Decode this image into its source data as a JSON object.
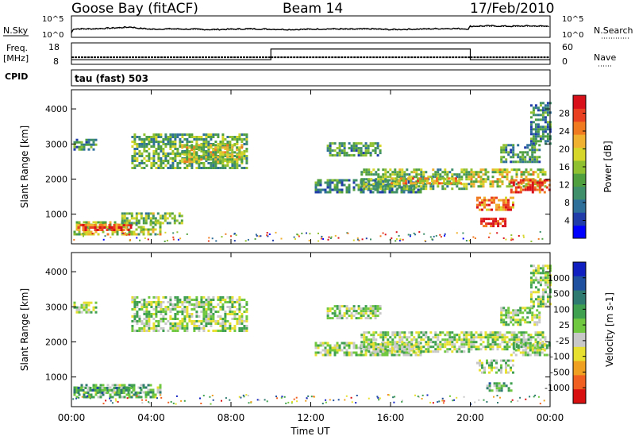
{
  "header": {
    "station": "Goose Bay (fitACF)",
    "beam": "Beam 14",
    "date": "17/Feb/2010"
  },
  "left_labels": {
    "nsky": "N.Sky",
    "freq_line1": "Freq.",
    "freq_line2": "[MHz]",
    "cpid": "CPID"
  },
  "right_labels": {
    "nsearch": "N.Search",
    "nave": "Nave"
  },
  "cpid_text": "tau (fast) 503",
  "time_axis": {
    "title": "Time UT",
    "ticks": [
      "00:00",
      "04:00",
      "08:00",
      "12:00",
      "16:00",
      "20:00",
      "00:00"
    ]
  },
  "colors": {
    "data_points": "#2a2a2a"
  },
  "chart_data": [
    {
      "type": "line",
      "name": "noise",
      "left_axis_label": "N.Sky",
      "right_axis_label": "N.Search",
      "left_ticks": [
        "10^5",
        "10^0"
      ],
      "right_ticks": [
        "10^5",
        "10^0"
      ],
      "x_hours": [
        0,
        0.1,
        1,
        2,
        3,
        3.3,
        4,
        5,
        6,
        7,
        8,
        9,
        10,
        11,
        12,
        13,
        14,
        15,
        16,
        17,
        18,
        19,
        19.9,
        20,
        21,
        22,
        23,
        24
      ],
      "y_log10": [
        0.8,
        1.9,
        1.9,
        2.1,
        2.4,
        2.1,
        1.8,
        1.9,
        1.8,
        1.7,
        1.8,
        1.9,
        1.8,
        1.7,
        1.8,
        1.9,
        1.8,
        1.9,
        1.7,
        1.8,
        1.9,
        2.0,
        1.9,
        2.6,
        2.7,
        2.6,
        2.7,
        2.6
      ],
      "ylim": [
        0,
        5
      ]
    },
    {
      "type": "line",
      "name": "freq_nave",
      "left_axis_label": "Freq. [MHz]",
      "right_axis_label": "Nave",
      "left_ticks": [
        "18",
        "8"
      ],
      "right_ticks": [
        "60",
        "0"
      ],
      "freq_segments": [
        {
          "x_start": 0,
          "x_end": 10,
          "value": 11
        },
        {
          "x_start": 10,
          "x_end": 20,
          "value": 11
        },
        {
          "x_start": 20,
          "x_end": 24,
          "value": 11
        }
      ],
      "nave_segments": [
        {
          "x_start": 0,
          "x_end": 10,
          "value": 10
        },
        {
          "x_start": 10,
          "x_end": 20,
          "value": 45
        },
        {
          "x_start": 20,
          "x_end": 24,
          "value": 10
        }
      ],
      "freq_ylim": [
        8,
        18
      ],
      "nave_ylim": [
        0,
        60
      ]
    },
    {
      "type": "heatmap",
      "name": "power",
      "ylabel": "Slant Range [km]",
      "yticks": [
        "1000",
        "2000",
        "3000",
        "4000"
      ],
      "ylim": [
        200,
        4500
      ],
      "xlim": [
        0,
        24
      ],
      "colorbar": {
        "label": "Power [dB]",
        "ticks": [
          "4",
          "8",
          "12",
          "16",
          "20",
          "24",
          "28"
        ],
        "colors": [
          "#0000ff",
          "#1f3ca8",
          "#2e6f9a",
          "#3f8f6b",
          "#4f9f3f",
          "#8fc030",
          "#d6d62a",
          "#f0b030",
          "#f07a20",
          "#e84020",
          "#d8101a"
        ]
      },
      "regions": [
        {
          "x0": 0.1,
          "x1": 1.2,
          "y0": 2850,
          "y1": 3150,
          "level": 0.35
        },
        {
          "x0": 0.1,
          "x1": 4.5,
          "y0": 450,
          "y1": 800,
          "level": 0.55
        },
        {
          "x0": 0.3,
          "x1": 3.0,
          "y0": 520,
          "y1": 720,
          "level": 0.85
        },
        {
          "x0": 2.5,
          "x1": 5.5,
          "y0": 750,
          "y1": 1050,
          "level": 0.45
        },
        {
          "x0": 3.0,
          "x1": 8.8,
          "y0": 2300,
          "y1": 3300,
          "level": 0.4
        },
        {
          "x0": 5.5,
          "x1": 8.5,
          "y0": 2500,
          "y1": 3000,
          "level": 0.55
        },
        {
          "x0": 12.2,
          "x1": 17.5,
          "y0": 1650,
          "y1": 2000,
          "level": 0.3
        },
        {
          "x0": 12.8,
          "x1": 15.5,
          "y0": 2700,
          "y1": 3050,
          "level": 0.35
        },
        {
          "x0": 14.5,
          "x1": 20,
          "y0": 1700,
          "y1": 2300,
          "level": 0.45
        },
        {
          "x0": 16,
          "x1": 19.5,
          "y0": 1850,
          "y1": 2050,
          "level": 0.65
        },
        {
          "x0": 20,
          "x1": 23.8,
          "y0": 1800,
          "y1": 2300,
          "level": 0.55
        },
        {
          "x0": 20.3,
          "x1": 22.2,
          "y0": 1100,
          "y1": 1500,
          "level": 0.8
        },
        {
          "x0": 20.5,
          "x1": 21.8,
          "y0": 650,
          "y1": 900,
          "level": 0.95
        },
        {
          "x0": 22,
          "x1": 24,
          "y0": 1600,
          "y1": 2000,
          "level": 0.9
        },
        {
          "x0": 21.5,
          "x1": 23.5,
          "y0": 2500,
          "y1": 3000,
          "level": 0.35
        },
        {
          "x0": 23,
          "x1": 24,
          "y0": 3000,
          "y1": 4200,
          "level": 0.3
        }
      ]
    },
    {
      "type": "heatmap",
      "name": "velocity",
      "ylabel": "Slant Range [km]",
      "yticks": [
        "1000",
        "2000",
        "3000",
        "4000"
      ],
      "ylim": [
        200,
        4500
      ],
      "xlim": [
        0,
        24
      ],
      "colorbar": {
        "label": "Velocity [m s-1]",
        "ticks": [
          "1000",
          "500",
          "100",
          "25",
          "-25",
          "-100",
          "-500",
          "-1000"
        ],
        "colors": [
          "#1020c0",
          "#1f50a0",
          "#2f7a70",
          "#3fa050",
          "#70c840",
          "#c8c8c8",
          "#e8e030",
          "#f0a020",
          "#f06020",
          "#d81010"
        ]
      },
      "regions": [
        {
          "x0": 0.1,
          "x1": 1.2,
          "y0": 2850,
          "y1": 3150,
          "level": 0.5
        },
        {
          "x0": 0.1,
          "x1": 4.5,
          "y0": 450,
          "y1": 800,
          "level": 0.42
        },
        {
          "x0": 0.3,
          "x1": 3.5,
          "y0": 520,
          "y1": 720,
          "level": 0.35
        },
        {
          "x0": 3.0,
          "x1": 8.8,
          "y0": 2300,
          "y1": 3300,
          "level": 0.5
        },
        {
          "x0": 12.2,
          "x1": 17.5,
          "y0": 1650,
          "y1": 2000,
          "level": 0.5
        },
        {
          "x0": 12.8,
          "x1": 15.5,
          "y0": 2700,
          "y1": 3050,
          "level": 0.5
        },
        {
          "x0": 14.5,
          "x1": 20,
          "y0": 1700,
          "y1": 2300,
          "level": 0.5
        },
        {
          "x0": 20,
          "x1": 23.8,
          "y0": 1800,
          "y1": 2300,
          "level": 0.5
        },
        {
          "x0": 20.3,
          "x1": 22.2,
          "y0": 1100,
          "y1": 1500,
          "level": 0.5
        },
        {
          "x0": 20.8,
          "x1": 22,
          "y0": 600,
          "y1": 850,
          "level": 0.38
        },
        {
          "x0": 22,
          "x1": 24,
          "y0": 1600,
          "y1": 2000,
          "level": 0.5
        },
        {
          "x0": 21.5,
          "x1": 23.5,
          "y0": 2500,
          "y1": 3000,
          "level": 0.5
        },
        {
          "x0": 23,
          "x1": 24,
          "y0": 3000,
          "y1": 4200,
          "level": 0.5
        }
      ]
    }
  ]
}
